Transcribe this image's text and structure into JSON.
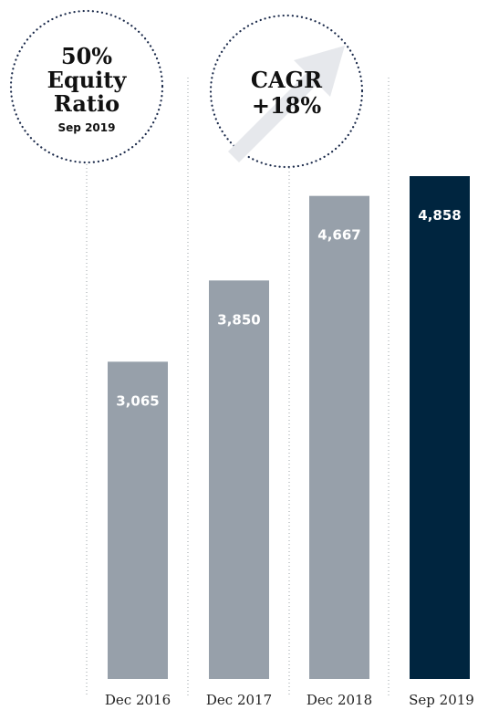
{
  "badges": {
    "equity": {
      "line1": "50%",
      "line2": "Equity",
      "line3": "Ratio",
      "line4": "Sep 2019"
    },
    "cagr": {
      "line1": "CAGR",
      "line2": "+18%"
    }
  },
  "colors": {
    "bar_default": "#97a0aa",
    "bar_highlight": "#00253f",
    "arrow": "#e6e8ec",
    "dots": "#1b2a4a"
  },
  "chart_data": {
    "type": "bar",
    "categories": [
      "Dec 2016",
      "Dec 2017",
      "Dec 2018",
      "Sep 2019"
    ],
    "values": [
      3065,
      3850,
      4667,
      4858
    ],
    "value_labels": [
      "3,065",
      "3,850",
      "4,667",
      "4,858"
    ],
    "highlight_index": 3,
    "ylim": [
      0,
      4858
    ],
    "grid": false,
    "title": "",
    "xlabel": "",
    "ylabel": ""
  }
}
